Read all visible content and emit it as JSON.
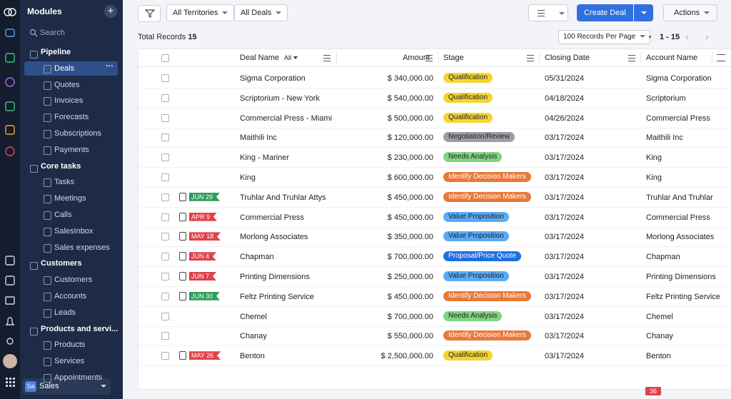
{
  "sidebar": {
    "title": "Modules",
    "search": "Search",
    "groups": [
      {
        "label": "Pipeline",
        "items": [
          {
            "label": "Deals",
            "active": true
          },
          {
            "label": "Quotes"
          },
          {
            "label": "Invoices"
          },
          {
            "label": "Forecasts"
          },
          {
            "label": "Subscriptions"
          },
          {
            "label": "Payments"
          }
        ]
      },
      {
        "label": "Core tasks",
        "items": [
          {
            "label": "Tasks"
          },
          {
            "label": "Meetings"
          },
          {
            "label": "Calls"
          },
          {
            "label": "SalesInbox"
          },
          {
            "label": "Sales expenses"
          }
        ]
      },
      {
        "label": "Customers",
        "items": [
          {
            "label": "Customers"
          },
          {
            "label": "Accounts"
          },
          {
            "label": "Leads"
          }
        ]
      },
      {
        "label": "Products and servi...",
        "items": [
          {
            "label": "Products"
          },
          {
            "label": "Services"
          },
          {
            "label": "Appointments"
          }
        ]
      }
    ]
  },
  "app": {
    "badge": "Sa",
    "name": "Sales"
  },
  "toolbar": {
    "territories": "All Territories",
    "view": "All Deals",
    "create": "Create Deal",
    "actions": "Actions"
  },
  "records": {
    "label": "Total Records",
    "count": "15",
    "per_page": "100 Records Per Page",
    "range": "1 - 15"
  },
  "table": {
    "columns": [
      "Deal Name",
      "Amount",
      "Stage",
      "Closing Date",
      "Account Name"
    ],
    "filter": "All",
    "rows": [
      {
        "deal": "Sigma Corporation",
        "amount": "$ 340,000.00",
        "stage": "Qualification",
        "stage_color": "#f6d431",
        "closing_date": "05/31/2024",
        "account": "Sigma Corporation"
      },
      {
        "deal": "Scriptorium - New York",
        "amount": "$ 540,000.00",
        "stage": "Qualification",
        "stage_color": "#f6d431",
        "closing_date": "04/18/2024",
        "account": "Scriptorium"
      },
      {
        "deal": "Commercial Press - Miami",
        "amount": "$ 500,000.00",
        "stage": "Qualification",
        "stage_color": "#f6d431",
        "closing_date": "04/26/2024",
        "account": "Commercial Press"
      },
      {
        "deal": "Maithili Inc",
        "amount": "$ 120,000.00",
        "stage": "Negotiation/Review",
        "stage_color": "#9b9ea3",
        "closing_date": "03/17/2024",
        "account": "Maithili Inc"
      },
      {
        "deal": "King - Mariner",
        "amount": "$ 230,000.00",
        "stage": "Needs Analysis",
        "stage_color": "#7fd57f",
        "closing_date": "03/17/2024",
        "account": "King"
      },
      {
        "deal": "King",
        "amount": "$ 600,000.00",
        "stage": "Identify Decision Makers",
        "stage_color": "#e8793a",
        "closing_date": "03/17/2024",
        "account": "King"
      },
      {
        "tag": "JUN 29",
        "tag_color": "#2e9e5b",
        "deal": "Truhlar And Truhlar Attys",
        "amount": "$ 450,000.00",
        "stage": "Identify Decision Makers",
        "stage_color": "#e8793a",
        "closing_date": "03/17/2024",
        "account": "Truhlar And Truhlar"
      },
      {
        "tag": "APR 9",
        "tag_color": "#e0424a",
        "deal": "Commercial Press",
        "amount": "$ 450,000.00",
        "stage": "Value Proposition",
        "stage_color": "#5aabf5",
        "closing_date": "03/17/2024",
        "account": "Commercial Press"
      },
      {
        "tag": "MAY 18",
        "tag_color": "#e0424a",
        "deal": "Morlong Associates",
        "amount": "$ 350,000.00",
        "stage": "Value Proposition",
        "stage_color": "#5aabf5",
        "closing_date": "03/17/2024",
        "account": "Morlong Associates"
      },
      {
        "tag": "JUN 4",
        "tag_color": "#e0424a",
        "deal": "Chapman",
        "amount": "$ 700,000.00",
        "stage": "Proposal/Price Quote",
        "stage_color": "#1f6fe0",
        "closing_date": "03/17/2024",
        "account": "Chapman"
      },
      {
        "tag": "JUN 7",
        "tag_color": "#e0424a",
        "deal": "Printing Dimensions",
        "amount": "$ 250,000.00",
        "stage": "Value Proposition",
        "stage_color": "#5aabf5",
        "closing_date": "03/17/2024",
        "account": "Printing Dimensions"
      },
      {
        "tag": "JUN 30",
        "tag_color": "#2e9e5b",
        "deal": "Feltz Printing Service",
        "amount": "$ 450,000.00",
        "stage": "Identify Decision Makers",
        "stage_color": "#e8793a",
        "closing_date": "03/17/2024",
        "account": "Feltz Printing Service"
      },
      {
        "deal": "Chemel",
        "amount": "$ 700,000.00",
        "stage": "Needs Analysis",
        "stage_color": "#7fd57f",
        "closing_date": "03/17/2024",
        "account": "Chemel"
      },
      {
        "deal": "Chanay",
        "amount": "$ 550,000.00",
        "stage": "Identify Decision Makers",
        "stage_color": "#e8793a",
        "closing_date": "03/17/2024",
        "account": "Chanay"
      },
      {
        "tag": "MAY 26",
        "tag_color": "#e0424a",
        "deal": "Benton",
        "amount": "$ 2,500,000.00",
        "stage": "Qualification",
        "stage_color": "#f6d431",
        "closing_date": "03/17/2024",
        "account": "Benton"
      }
    ]
  },
  "notification_count": "36"
}
